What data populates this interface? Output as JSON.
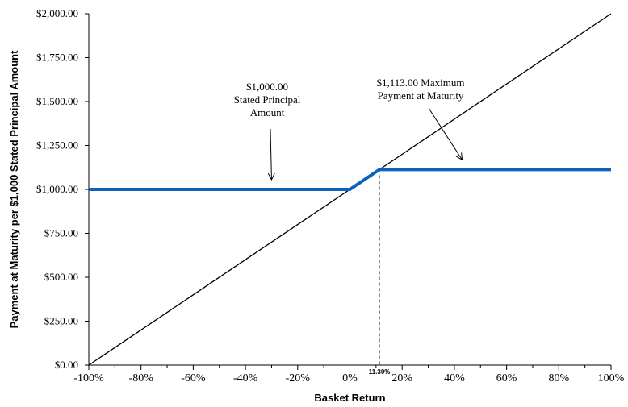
{
  "chart_data": {
    "type": "line",
    "xlabel": "Basket Return",
    "ylabel": "Payment at Maturity per $1,000 Stated Principal Amount",
    "xlim": [
      -100,
      100
    ],
    "ylim": [
      0,
      2000
    ],
    "x_ticks": [
      "-100%",
      "-80%",
      "-60%",
      "-40%",
      "-20%",
      "0%",
      "20%",
      "40%",
      "60%",
      "80%",
      "100%"
    ],
    "y_ticks": [
      "$0.00",
      "$250.00",
      "$500.00",
      "$750.00",
      "$1,000.00",
      "$1,250.00",
      "$1,500.00",
      "$1,750.00",
      "$2,000.00"
    ],
    "series": [
      {
        "color": "#0b63bd",
        "x": [
          -100,
          0,
          11.3,
          100
        ],
        "y": [
          1000,
          1000,
          1113,
          1113
        ]
      },
      {
        "color": "#000000",
        "x": [
          -100,
          100
        ],
        "y": [
          0,
          2000
        ]
      }
    ],
    "reference_lines": [
      {
        "x": 0,
        "y": 1000,
        "style": "dashed"
      },
      {
        "x": 11.3,
        "y": 1113,
        "style": "dashed"
      }
    ],
    "cap_label": "11.30%",
    "annotations": [
      {
        "lines": [
          "$1,000.00",
          "Stated Principal",
          "Amount"
        ],
        "arrow_to": [
          -30,
          1000
        ]
      },
      {
        "lines": [
          "$1,113.00 Maximum",
          "Payment at Maturity"
        ],
        "arrow_to": [
          43,
          1113
        ]
      }
    ],
    "grid": false,
    "legend": "none"
  }
}
